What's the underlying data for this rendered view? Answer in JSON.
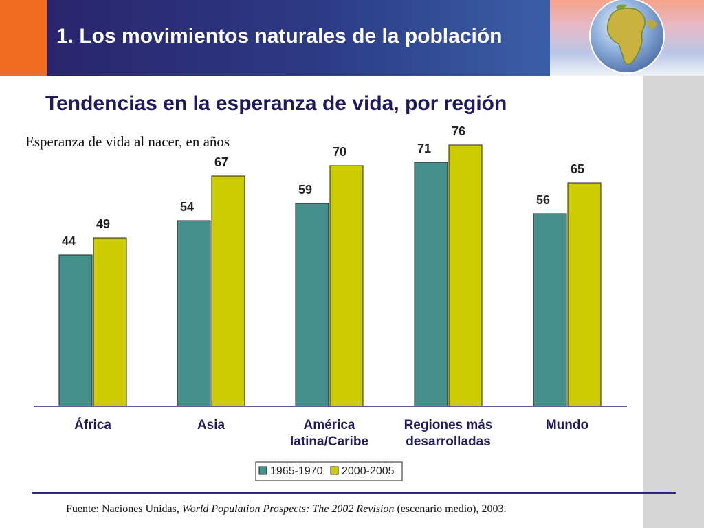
{
  "header": {
    "title": "1. Los movimientos naturales de la población"
  },
  "chart_data": {
    "type": "bar",
    "title": "Tendencias en la esperanza de vida, por región",
    "subtitle": "Esperanza de vida al nacer, en años",
    "categories": [
      "África",
      "Asia",
      "América latina/Caribe",
      "Regiones más desarrolladas",
      "Mundo"
    ],
    "category_lines": [
      [
        "África"
      ],
      [
        "Asia"
      ],
      [
        "América",
        "latina/Caribe"
      ],
      [
        "Regiones más",
        "desarrolladas"
      ],
      [
        "Mundo"
      ]
    ],
    "series": [
      {
        "name": "1965-1970",
        "values": [
          44,
          54,
          59,
          71,
          56
        ],
        "color": "#45908c"
      },
      {
        "name": "2000-2005",
        "values": [
          49,
          67,
          70,
          76,
          65
        ],
        "color": "#cccc00"
      }
    ],
    "ylim": [
      0,
      85
    ],
    "grid": false,
    "legend_position": "bottom-center"
  },
  "source": {
    "prefix": "Fuente: Naciones Unidas, ",
    "italic": "World Population Prospects: The 2002 Revision",
    "suffix": " (escenario medio), 2003."
  },
  "colors": {
    "header_start": "#2a2166",
    "header_end": "#3b5ea8",
    "accent_orange": "#f36b21",
    "title_navy": "#1f1a5c",
    "side_gray": "#d6d6d6"
  }
}
